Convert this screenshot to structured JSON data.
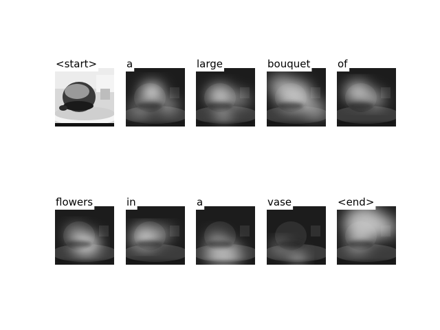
{
  "figure": {
    "kind": "caption attention visualization",
    "image_style": "grayscale photo of a plated dessert (round cake/bun on a dish) with soft-attention heatmap overlays",
    "panels": [
      {
        "word": "<start>",
        "image": "original grayscale photo, no overlay"
      },
      {
        "word": "a",
        "image": "attention map, brightest over center-left of cake"
      },
      {
        "word": "large",
        "image": "attention map, bright over cake center and lower middle"
      },
      {
        "word": "bouquet",
        "image": "attention map, diffuse bright over cake and background"
      },
      {
        "word": "of",
        "image": "attention map, bright over cake top-left"
      },
      {
        "word": "flowers",
        "image": "attention map, bright over lower-middle of cake"
      },
      {
        "word": "in",
        "image": "attention map, bright over cake left half"
      },
      {
        "word": "a",
        "image": "attention map, bright band along bottom of dish"
      },
      {
        "word": "vase",
        "image": "attention map, bright spot at bottom center of dish"
      },
      {
        "word": "<end>",
        "image": "attention map, bright over background and upper area"
      }
    ]
  },
  "colors": {
    "background": "#ffffff",
    "label_box": "#ffffff",
    "text": "#000000"
  }
}
